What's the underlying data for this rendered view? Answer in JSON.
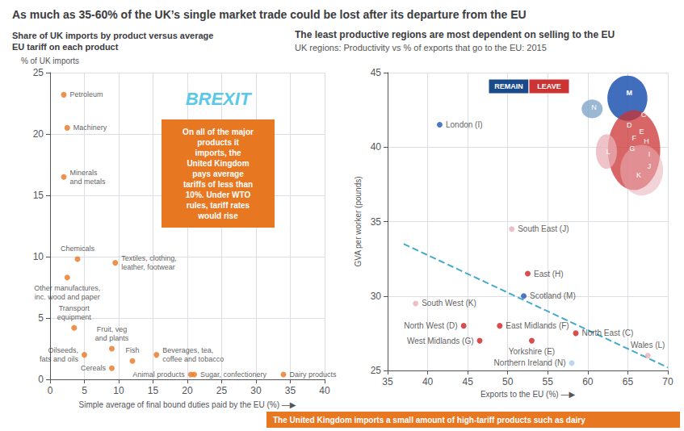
{
  "chart_data": [
    {
      "type": "scatter",
      "title": "As much as 35-60% of the UK’s single market trade could be lost after its departure from the EU",
      "subtitle": "Share of UK imports by product versus average\nEU tariff on each product",
      "xlabel": "Simple average of final bound duties paid by the EU (%) —▶",
      "ylabel": "% of UK imports",
      "xlim": [
        0,
        40
      ],
      "xticks": [
        0,
        5,
        10,
        15,
        20,
        25,
        30,
        35,
        40
      ],
      "ylim": [
        0,
        25
      ],
      "yticks": [
        0,
        5,
        10,
        15,
        20,
        25
      ],
      "grid": true,
      "series": [
        {
          "type": "scatter",
          "color": "#e87722",
          "x": [
            2.0,
            2.5,
            2.0,
            4.0,
            2.5,
            9.5,
            3.5,
            5.0,
            9.0,
            9.0,
            12.0,
            15.5,
            20.5,
            21.0,
            34.0
          ],
          "values": [
            23.2,
            20.5,
            16.5,
            9.8,
            8.3,
            9.5,
            4.2,
            2.0,
            2.5,
            0.9,
            1.5,
            2.0,
            0.4,
            0.4,
            0.4
          ],
          "point_labels": [
            "Petroleum",
            "Machinery",
            "Minerals\nand metals",
            "Chemicals",
            "Other manufactures,\ninc. wood and paper",
            "Textiles, clothing,\nleather, footwear",
            "Transport\nequipment",
            "Oilseeds,\nfats and oils",
            "Fruit, veg\nand plants",
            "Cereals",
            "Fish",
            "Beverages, tea,\ncoffee and tobacco",
            "Animal products",
            "Sugar, confectionery",
            "Dairy products"
          ]
        }
      ],
      "annotations": [
        {
          "text": "BREXIT",
          "color": "#5bc8e8"
        },
        {
          "text": "On all of the major\nproducts it\nimports, the\nUnited Kingdom\npays average\ntariffs of less than\n10%. Under WTO\nrules, tariff rates\nwould rise",
          "color": "#e87722"
        },
        {
          "text": "The United Kingdom imports a small amount of high-tariff products such as dairy",
          "color": "#e87722"
        }
      ]
    },
    {
      "type": "scatter",
      "title": "The least productive regions are most dependent on selling to the EU",
      "subtitle": "UK regions: Productivity vs % of exports that go to the EU: 2015",
      "xlabel": "Exports to the EU (%) —▶",
      "ylabel": "GVA per worker (pounds)",
      "xlim": [
        35,
        70
      ],
      "xticks": [
        35,
        40,
        45,
        50,
        55,
        60,
        65,
        70
      ],
      "ylim": [
        25,
        45
      ],
      "yticks": [
        25,
        30,
        35,
        40,
        45
      ],
      "grid": true,
      "series": [
        {
          "type": "scatter",
          "x": [
            41.5,
            50.5,
            38.5,
            52.5,
            52.0,
            49.0,
            44.5,
            46.5,
            53.0,
            58.5,
            58.0,
            67.5
          ],
          "values": [
            41.5,
            34.5,
            29.5,
            31.5,
            30.0,
            28.0,
            28.0,
            27.0,
            27.0,
            27.5,
            25.5,
            26.0
          ],
          "point_labels": [
            "London (I)",
            "South East (J)",
            "South West (K)",
            "East (H)",
            "Scotland (M)",
            "East Midlands (F)",
            "North West (D)",
            "West Midlands (G)",
            "Yorkshire (E)",
            "North East (C)",
            "Northern Ireland (N)",
            "Wales (L)"
          ],
          "colors": [
            "#2055b0",
            "#e8b0b8",
            "#e8b0b8",
            "#cc2222",
            "#2055b0",
            "#cc2222",
            "#cc2222",
            "#cc2222",
            "#cc2222",
            "#cc2222",
            "#aaccee",
            "#e8b0b8"
          ]
        },
        {
          "type": "line",
          "line_style": "dashed",
          "color": "#44aacc",
          "x": [
            37,
            70
          ],
          "values": [
            33.5,
            25.2
          ]
        }
      ],
      "annotations": [
        {
          "text": "REMAIN",
          "color": "#1a4a8a"
        },
        {
          "text": "LEAVE",
          "color": "#cc3333"
        }
      ],
      "map_labels": [
        "M",
        "N",
        "C",
        "D",
        "E",
        "F",
        "G",
        "H",
        "I",
        "J",
        "K",
        "L"
      ],
      "map_colors": [
        "#2055b0",
        "#88aacc",
        "#cc3333",
        "#e8b0b8",
        "#e8b0b8"
      ]
    }
  ]
}
